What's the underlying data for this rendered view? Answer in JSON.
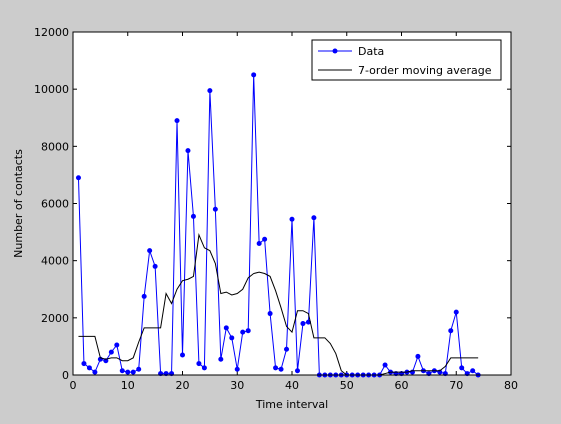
{
  "chart_data": {
    "type": "line",
    "title": "",
    "xlabel": "Time interval",
    "ylabel": "Number of contacts",
    "xlim": [
      0,
      80
    ],
    "ylim": [
      0,
      12000
    ],
    "xticks": [
      0,
      10,
      20,
      30,
      40,
      50,
      60,
      70,
      80
    ],
    "yticks": [
      0,
      2000,
      4000,
      6000,
      8000,
      10000,
      12000
    ],
    "xtick_labels": [
      "0",
      "10",
      "20",
      "30",
      "40",
      "50",
      "60",
      "70",
      "80"
    ],
    "ytick_labels": [
      "0",
      "2000",
      "4000",
      "6000",
      "8000",
      "10000",
      "12000"
    ],
    "grid": false,
    "legend_position": "top-right",
    "series": [
      {
        "name": "Data",
        "color": "#0000ff",
        "marker": "dot",
        "x": [
          1,
          2,
          3,
          4,
          5,
          6,
          7,
          8,
          9,
          10,
          11,
          12,
          13,
          14,
          15,
          16,
          17,
          18,
          19,
          20,
          21,
          22,
          23,
          24,
          25,
          26,
          27,
          28,
          29,
          30,
          31,
          32,
          33,
          34,
          35,
          36,
          37,
          38,
          39,
          40,
          41,
          42,
          43,
          44,
          45,
          46,
          47,
          48,
          49,
          50,
          51,
          52,
          53,
          54,
          55,
          56,
          57,
          58,
          59,
          60,
          61,
          62,
          63,
          64,
          65,
          66,
          67,
          68,
          69,
          70,
          71,
          72,
          73,
          74
        ],
        "values": [
          6900,
          400,
          250,
          100,
          550,
          500,
          800,
          1050,
          150,
          100,
          100,
          200,
          2750,
          4350,
          3800,
          50,
          50,
          50,
          8900,
          700,
          7850,
          5550,
          400,
          250,
          9950,
          5800,
          550,
          1650,
          1300,
          200,
          1500,
          1550,
          10500,
          4600,
          4750,
          2150,
          250,
          200,
          900,
          5450,
          150,
          1800,
          1850,
          5500,
          0,
          0,
          0,
          0,
          0,
          0,
          0,
          0,
          0,
          0,
          0,
          0,
          350,
          100,
          50,
          50,
          100,
          100,
          650,
          150,
          50,
          150,
          100,
          50,
          1550,
          2200,
          250,
          50,
          150,
          0
        ]
      },
      {
        "name": "7-order moving average",
        "color": "#000000",
        "marker": "none",
        "x": [
          1,
          2,
          3,
          4,
          5,
          6,
          7,
          8,
          9,
          10,
          11,
          12,
          13,
          14,
          15,
          16,
          17,
          18,
          19,
          20,
          21,
          22,
          23,
          24,
          25,
          26,
          27,
          28,
          29,
          30,
          31,
          32,
          33,
          34,
          35,
          36,
          37,
          38,
          39,
          40,
          41,
          42,
          43,
          44,
          45,
          46,
          47,
          48,
          49,
          50,
          51,
          52,
          53,
          54,
          55,
          56,
          57,
          58,
          59,
          60,
          61,
          62,
          63,
          64,
          65,
          66,
          67,
          68,
          69,
          70,
          71,
          72,
          73,
          74
        ],
        "values": [
          1350,
          1350,
          1350,
          1350,
          600,
          550,
          600,
          600,
          500,
          500,
          600,
          1150,
          1650,
          1650,
          1650,
          1650,
          2850,
          2500,
          3000,
          3300,
          3350,
          3450,
          4900,
          4450,
          4350,
          3900,
          2850,
          2900,
          2800,
          2850,
          3000,
          3400,
          3550,
          3600,
          3550,
          3450,
          2950,
          2350,
          1700,
          1500,
          2250,
          2250,
          2150,
          1300,
          1300,
          1300,
          1100,
          750,
          150,
          0,
          0,
          0,
          0,
          0,
          0,
          0,
          50,
          100,
          100,
          100,
          100,
          150,
          150,
          150,
          150,
          150,
          150,
          300,
          600,
          600,
          600,
          600,
          600,
          600
        ]
      }
    ]
  }
}
